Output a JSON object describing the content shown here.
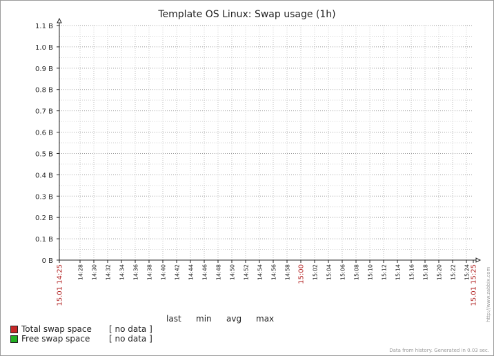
{
  "chart_data": {
    "type": "line",
    "title": "Template OS Linux: Swap usage (1h)",
    "y_ticks": [
      "0 B",
      "0.1 B",
      "0.2 B",
      "0.3 B",
      "0.4 B",
      "0.5 B",
      "0.6 B",
      "0.7 B",
      "0.8 B",
      "0.9 B",
      "1.0 B",
      "1.1 B"
    ],
    "ylim": [
      0,
      1.1
    ],
    "x_ticks": [
      "15.01 14:25",
      "14:28",
      "14:30",
      "14:32",
      "14:34",
      "14:36",
      "14:38",
      "14:40",
      "14:42",
      "14:44",
      "14:46",
      "14:48",
      "14:50",
      "14:52",
      "14:54",
      "14:56",
      "14:58",
      "15:00",
      "15:02",
      "15:04",
      "15:06",
      "15:08",
      "15:10",
      "15:12",
      "15:14",
      "15:16",
      "15:18",
      "15:20",
      "15:22",
      "15:24",
      "15.01 15:25"
    ],
    "x_tick_minutes": [
      0,
      3,
      5,
      7,
      9,
      11,
      13,
      15,
      17,
      19,
      21,
      23,
      25,
      27,
      29,
      31,
      33,
      35,
      37,
      39,
      41,
      43,
      45,
      47,
      49,
      51,
      53,
      55,
      57,
      59,
      60
    ],
    "x_highlight_ticks": [
      "15.01 14:25",
      "15:00",
      "15.01 15:25"
    ],
    "x_highlight_color": "#b22222",
    "grid": true,
    "legend_columns": [
      "last",
      "min",
      "avg",
      "max"
    ],
    "series": [
      {
        "name": "Total swap space",
        "color": "#c62828",
        "values": [],
        "status": "[ no data ]"
      },
      {
        "name": "Free swap space",
        "color": "#22b022",
        "values": [],
        "status": "[ no data ]"
      }
    ]
  },
  "watermark": "http://www.zabbix.com",
  "footer_note": "Data from history. Generated in 0.03 sec."
}
